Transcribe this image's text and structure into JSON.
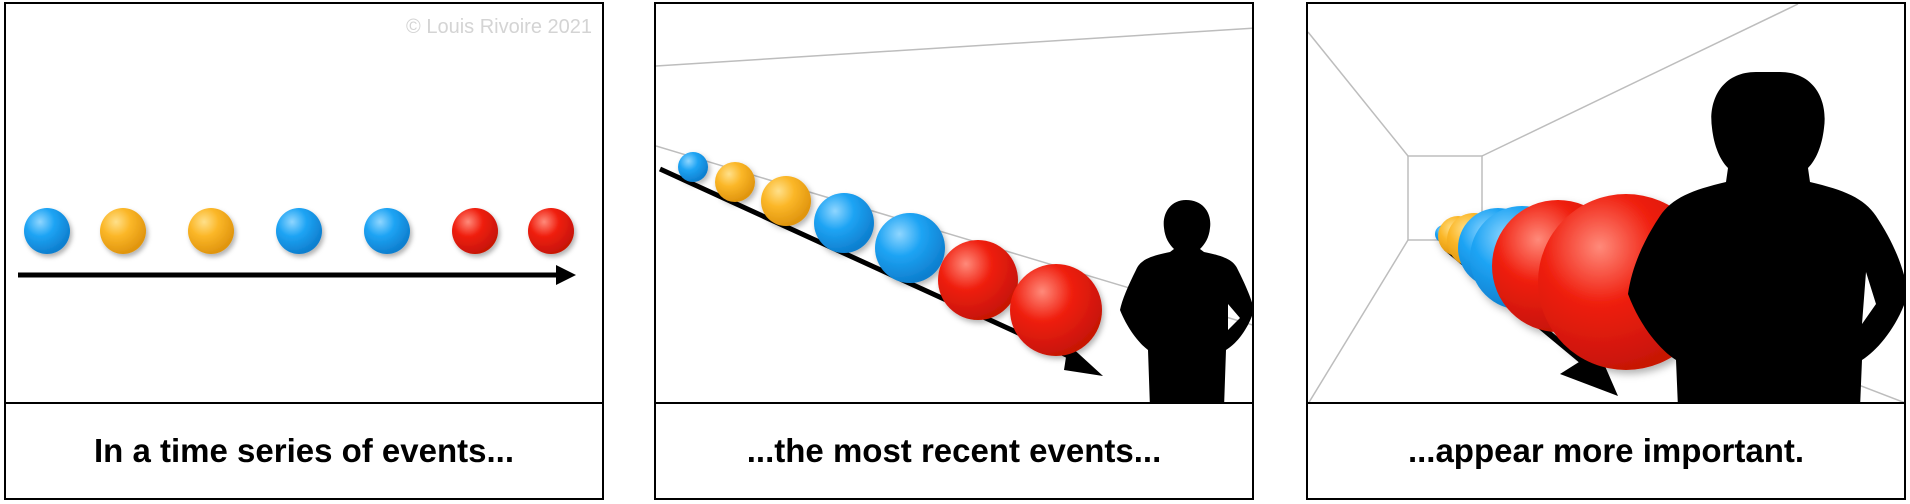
{
  "credit": "© Louis Rivoire 2021",
  "colors": {
    "blue": "#1ea4f4",
    "orange": "#fbb728",
    "red": "#f02010",
    "ink": "#000000",
    "guide": "#bdbdbd"
  },
  "panels": [
    {
      "caption": "In a time series of events..."
    },
    {
      "caption": "...the most recent events..."
    },
    {
      "caption": "...appear more important."
    }
  ],
  "events": [
    "blue",
    "orange",
    "orange",
    "blue",
    "blue",
    "red",
    "red"
  ]
}
